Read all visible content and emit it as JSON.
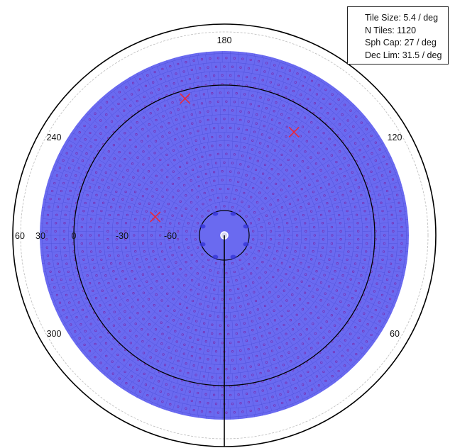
{
  "legend": {
    "tile_size": "Tile Size: 5.4 / deg",
    "n_tiles": "N Tiles: 1120",
    "sph_cap": "Sph Cap: 27 / deg",
    "dec_lim": "Dec Lim: 31.5 / deg"
  },
  "ra_labels": [
    "180",
    "120",
    "60",
    "300",
    "240"
  ],
  "dec_labels": [
    "60",
    "30",
    "0",
    "-30",
    "-60"
  ],
  "markers": [
    {
      "ra": 196,
      "dec": -5
    },
    {
      "ra": 146,
      "dec": -16
    },
    {
      "ra": 255,
      "dec": -49
    }
  ],
  "colors": {
    "tile_fill": "#6a6af0",
    "tile_line": "#3c3cc8",
    "tile_center": "#7a2fb0",
    "marker": "#e8283c",
    "outline": "#000000"
  }
}
